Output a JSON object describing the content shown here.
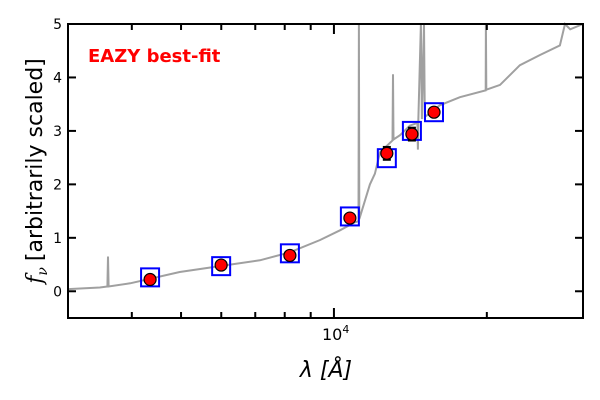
{
  "chart_data": {
    "type": "line",
    "title": "",
    "annotation": "EAZY best-fit",
    "xlabel": "λ [Å]",
    "ylabel_symbol": "f",
    "ylabel_sub": "ν",
    "ylabel_text": "[arbitrarily scaled]",
    "xscale": "log",
    "xlim": [
      2995,
      30930
    ],
    "ylim": [
      -0.5,
      5
    ],
    "yticks": [
      0,
      1,
      2,
      3,
      4,
      5
    ],
    "xtick_major_base": "10",
    "xtick_major_exp": "4",
    "xtick_minor": [
      4000,
      5000,
      6000,
      7000,
      8000,
      9000,
      20000
    ],
    "colors": {
      "spectrum": "#a0a0a0",
      "observed": "#ff0000",
      "model": "#0000ff",
      "annotation": "#ff0000"
    },
    "spectrum": [
      [
        2995,
        0.04
      ],
      [
        3460,
        0.07
      ],
      [
        3580,
        0.09
      ],
      [
        3590,
        0.65
      ],
      [
        3600,
        0.09
      ],
      [
        3970,
        0.15
      ],
      [
        4970,
        0.36
      ],
      [
        5960,
        0.47
      ],
      [
        7150,
        0.58
      ],
      [
        8190,
        0.73
      ],
      [
        9390,
        0.96
      ],
      [
        10280,
        1.14
      ],
      [
        10990,
        1.29
      ],
      [
        11180,
        1.31
      ],
      [
        11200,
        5.0
      ],
      [
        11220,
        1.35
      ],
      [
        11510,
        1.7
      ],
      [
        11770,
        2.0
      ],
      [
        12040,
        2.2
      ],
      [
        12320,
        2.6
      ],
      [
        13040,
        2.82
      ],
      [
        13070,
        4.06
      ],
      [
        13100,
        2.84
      ],
      [
        13490,
        2.92
      ],
      [
        14110,
        3.1
      ],
      [
        14600,
        3.15
      ],
      [
        14630,
        2.65
      ],
      [
        14660,
        3.18
      ],
      [
        14830,
        5.0
      ],
      [
        14900,
        3.22
      ],
      [
        15040,
        5.0
      ],
      [
        15100,
        3.26
      ],
      [
        16160,
        3.48
      ],
      [
        17700,
        3.63
      ],
      [
        19900,
        3.76
      ],
      [
        19920,
        5.0
      ],
      [
        19950,
        3.77
      ],
      [
        21230,
        3.86
      ],
      [
        23240,
        4.23
      ],
      [
        25450,
        4.42
      ],
      [
        27860,
        4.6
      ],
      [
        28500,
        5.0
      ],
      [
        29180,
        4.9
      ],
      [
        30930,
        5.0
      ]
    ],
    "photometry": [
      {
        "lambda": 4345,
        "flux": 0.22,
        "err": 0.05,
        "model": 0.26
      },
      {
        "lambda": 5997,
        "flux": 0.49,
        "err": 0.05,
        "model": 0.47
      },
      {
        "lambda": 8190,
        "flux": 0.67,
        "err": 0.05,
        "model": 0.71
      },
      {
        "lambda": 10750,
        "flux": 1.37,
        "err": 0.06,
        "model": 1.4
      },
      {
        "lambda": 12710,
        "flux": 2.58,
        "err": 0.12,
        "model": 2.49
      },
      {
        "lambda": 14240,
        "flux": 2.94,
        "err": 0.12,
        "model": 3.0
      },
      {
        "lambda": 15740,
        "flux": 3.35,
        "err": 0.08,
        "model": 3.35
      }
    ]
  }
}
